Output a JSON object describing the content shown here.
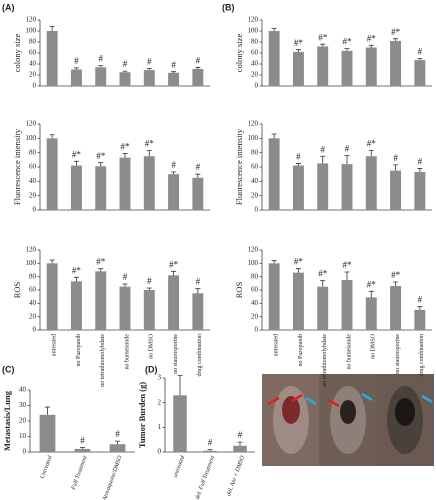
{
  "panels": [
    "(A)",
    "(B)",
    "(C)",
    "(D)"
  ],
  "chart_data": [
    {
      "type": "bar",
      "ylabel": "colony size",
      "categories": [
        null,
        null,
        null,
        null,
        null,
        null,
        null
      ],
      "values": [
        100,
        30,
        34,
        25,
        29,
        24,
        31
      ],
      "errors": [
        8,
        3,
        3,
        2,
        3,
        2,
        3
      ],
      "annotations": [
        null,
        "#",
        "#",
        "#",
        "#",
        "#",
        "#"
      ],
      "color": "#8c8c8c",
      "ylim": [
        0,
        120
      ],
      "yticks": [
        0,
        20,
        40,
        60,
        80,
        100,
        120
      ]
    },
    {
      "type": "bar",
      "ylabel": "Fluorescence intensity",
      "categories": [
        null,
        null,
        null,
        null,
        null,
        null,
        null
      ],
      "values": [
        100,
        62,
        61,
        73,
        75,
        50,
        45
      ],
      "errors": [
        5,
        6,
        5,
        6,
        8,
        3,
        5
      ],
      "annotations": [
        null,
        "#*",
        "#*",
        "#*",
        "#*",
        "#",
        "#"
      ],
      "color": "#8c8c8c",
      "ylim": [
        0,
        120
      ],
      "yticks": [
        0,
        20,
        40,
        60,
        80,
        100,
        120
      ]
    },
    {
      "type": "bar",
      "ylabel": "ROS",
      "categories": [
        "untreated",
        "no Pazopanib",
        "no tetrathiomolybdate",
        "no bumetanide",
        "no DMSO",
        "no staurosporine",
        "drug combination"
      ],
      "values": [
        100,
        73,
        88,
        65,
        60,
        82,
        55
      ],
      "errors": [
        5,
        6,
        4,
        4,
        3,
        6,
        7
      ],
      "annotations": [
        null,
        "#*",
        "#*",
        "#",
        "#",
        "#*",
        "#"
      ],
      "color": "#8c8c8c",
      "ylim": [
        0,
        120
      ],
      "yticks": [
        0,
        20,
        40,
        60,
        80,
        100,
        120
      ]
    },
    {
      "type": "bar",
      "ylabel": "colony size",
      "categories": [
        null,
        null,
        null,
        null,
        null,
        null,
        null
      ],
      "values": [
        100,
        62,
        72,
        64,
        70,
        82,
        47
      ],
      "errors": [
        5,
        4,
        4,
        4,
        4,
        4,
        3
      ],
      "annotations": [
        null,
        "#*",
        "#*",
        "#*",
        "#*",
        "#*",
        "#"
      ],
      "color": "#8c8c8c",
      "ylim": [
        0,
        120
      ],
      "yticks": [
        0,
        20,
        40,
        60,
        80,
        100,
        120
      ]
    },
    {
      "type": "bar",
      "ylabel": "Fluorescence intensity",
      "categories": [
        null,
        null,
        null,
        null,
        null,
        null,
        null
      ],
      "values": [
        100,
        62,
        65,
        64,
        75,
        55,
        53
      ],
      "errors": [
        6,
        3,
        10,
        12,
        8,
        8,
        5
      ],
      "annotations": [
        null,
        "#",
        "#",
        "#",
        "#*",
        "#",
        "#"
      ],
      "color": "#8c8c8c",
      "ylim": [
        0,
        120
      ],
      "yticks": [
        0,
        20,
        40,
        60,
        80,
        100,
        120
      ]
    },
    {
      "type": "bar",
      "ylabel": "ROS",
      "categories": [
        "untreated",
        "no Pazopanib",
        "no tetrathiomolybdate",
        "no bumetanide",
        "no DMSO",
        "no staurosporine",
        "drug combination"
      ],
      "values": [
        100,
        86,
        65,
        75,
        49,
        66,
        30
      ],
      "errors": [
        4,
        6,
        9,
        12,
        9,
        6,
        5
      ],
      "annotations": [
        null,
        "#*",
        "#*",
        "#*",
        "#*",
        "#*",
        "#"
      ],
      "color": "#8c8c8c",
      "ylim": [
        0,
        120
      ],
      "yticks": [
        0,
        20,
        40,
        60,
        80,
        100,
        120
      ]
    },
    {
      "type": "bar",
      "ylabel": "Metastasis/Lung",
      "categories": [
        "Untreated",
        "Full Treatment",
        "Atovaquone/DMSO"
      ],
      "values": [
        24,
        2,
        5
      ],
      "errors": [
        5,
        1,
        2
      ],
      "annotations": [
        null,
        "#",
        "#"
      ],
      "color": "#8c8c8c",
      "ylim": [
        0,
        40
      ],
      "yticks": [
        0,
        10,
        20,
        30,
        40
      ]
    },
    {
      "type": "bar",
      "ylabel": "Tumor Burden (g)",
      "categories": [
        "untreated",
        "del. Full Treatment",
        "del. Ato + DMSO"
      ],
      "values": [
        2.3,
        0.05,
        0.25
      ],
      "errors": [
        0.8,
        0.05,
        0.15
      ],
      "annotations": [
        null,
        "#",
        "#"
      ],
      "color": "#8c8c8c",
      "ylim": [
        0,
        3
      ],
      "yticks": [
        0,
        1,
        2,
        3
      ]
    }
  ]
}
